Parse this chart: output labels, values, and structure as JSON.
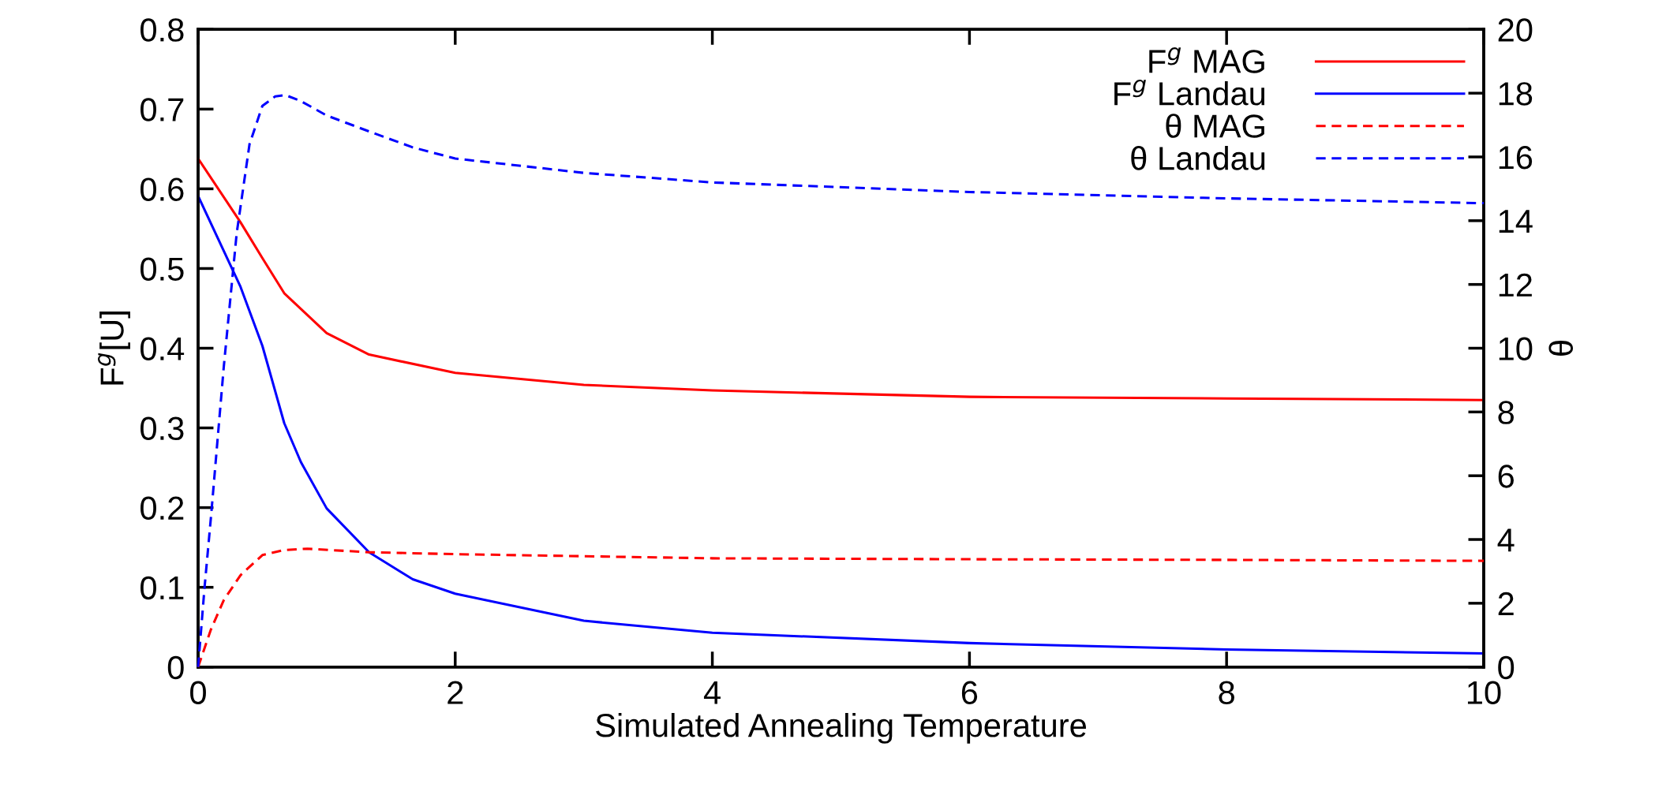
{
  "chart_data": {
    "type": "line",
    "xlabel": "Simulated Annealing Temperature",
    "ylabel": "F$^{g}$[U]",
    "y2label": "θ",
    "xlim": [
      0,
      10
    ],
    "xticks": [
      0,
      2,
      4,
      6,
      8,
      10
    ],
    "ylim": [
      0,
      0.8
    ],
    "yticks": [
      0,
      0.1,
      0.2,
      0.3,
      0.4,
      0.5,
      0.6,
      0.7,
      0.8
    ],
    "y2lim": [
      0,
      20
    ],
    "y2ticks": [
      0,
      2,
      4,
      6,
      8,
      10,
      12,
      14,
      16,
      18,
      20
    ],
    "legend": "top right",
    "grid": false,
    "marker": "none",
    "series": [
      {
        "name": "F$^{g}$ MAG",
        "color": "#ff0000",
        "line_style": "solid",
        "x": [
          0,
          0.33,
          0.5,
          0.67,
          1,
          1.33,
          2,
          3,
          4,
          6,
          8,
          10
        ],
        "values": [
          0.638,
          0.558,
          0.513,
          0.469,
          0.419,
          0.392,
          0.369,
          0.354,
          0.347,
          0.339,
          0.337,
          0.335
        ]
      },
      {
        "name": "F$^{g}$ Landau",
        "color": "#0000ff",
        "line_style": "solid",
        "x": [
          0,
          0.33,
          0.5,
          0.67,
          0.8,
          1,
          1.33,
          1.67,
          2,
          3,
          4,
          6,
          8,
          10
        ],
        "values": [
          0.591,
          0.477,
          0.403,
          0.306,
          0.257,
          0.199,
          0.144,
          0.11,
          0.092,
          0.058,
          0.043,
          0.03,
          0.022,
          0.017
        ]
      },
      {
        "name": "θ MAG",
        "color": "#ff0000",
        "line_style": "dashed",
        "axis": "y2",
        "x": [
          0,
          0.1,
          0.2,
          0.33,
          0.5,
          0.67,
          0.85,
          1.33,
          2,
          4,
          6,
          8,
          10
        ],
        "values": [
          0,
          1.18,
          2.1,
          2.88,
          3.51,
          3.67,
          3.71,
          3.6,
          3.54,
          3.41,
          3.38,
          3.36,
          3.33
        ]
      },
      {
        "name": "θ Landau",
        "color": "#0000ff",
        "line_style": "dashed",
        "axis": "y2",
        "x": [
          0,
          0.05,
          0.1,
          0.2,
          0.3,
          0.4,
          0.5,
          0.6,
          0.68,
          0.8,
          1,
          1.33,
          1.67,
          2,
          3,
          4,
          6,
          8,
          10
        ],
        "values": [
          0,
          2.49,
          4.7,
          9.43,
          13.6,
          16.4,
          17.6,
          17.9,
          17.94,
          17.75,
          17.3,
          16.8,
          16.3,
          15.95,
          15.5,
          15.2,
          14.9,
          14.7,
          14.55
        ]
      }
    ]
  }
}
